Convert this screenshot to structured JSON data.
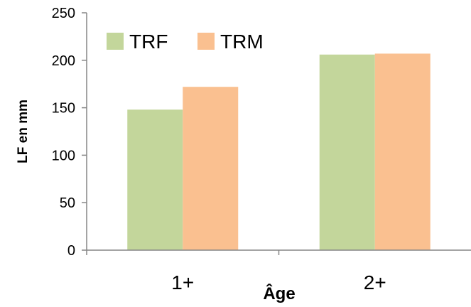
{
  "chart_data": {
    "type": "bar",
    "categories": [
      "1+",
      "2+"
    ],
    "series": [
      {
        "name": "TRF",
        "values": [
          148,
          206
        ],
        "color": "#c3d69b"
      },
      {
        "name": "TRM",
        "values": [
          172,
          207
        ],
        "color": "#fac090"
      }
    ],
    "xlabel": "Âge",
    "ylabel": "LF en mm",
    "ylim": [
      0,
      250
    ],
    "yticks": [
      "0",
      "50",
      "100",
      "150",
      "200",
      "250"
    ],
    "grid": false,
    "legend": "top-left"
  }
}
